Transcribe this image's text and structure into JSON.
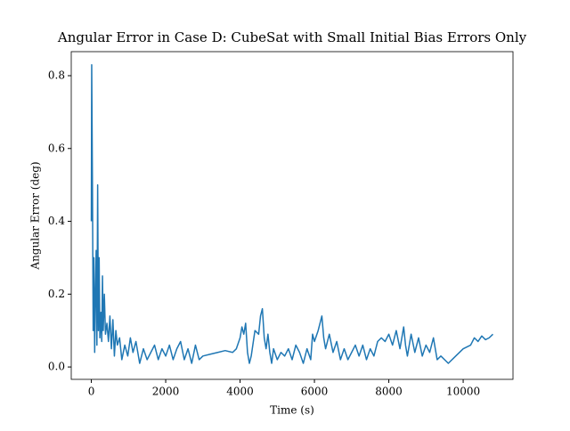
{
  "chart_data": {
    "type": "line",
    "title": "Angular Error in Case D: CubeSat with Small Initial Bias Errors Only",
    "x_label": "Time (s)",
    "y_label": "Angular Error (deg)",
    "x": [
      0,
      10,
      30,
      50,
      70,
      90,
      110,
      130,
      150,
      170,
      190,
      210,
      230,
      260,
      280,
      300,
      320,
      350,
      380,
      420,
      460,
      500,
      540,
      580,
      620,
      660,
      700,
      760,
      820,
      900,
      980,
      1050,
      1120,
      1200,
      1300,
      1400,
      1500,
      1600,
      1700,
      1800,
      1900,
      2000,
      2100,
      2200,
      2300,
      2400,
      2500,
      2600,
      2700,
      2800,
      2900,
      3000,
      3200,
      3400,
      3600,
      3800,
      3900,
      4000,
      4050,
      4100,
      4150,
      4200,
      4250,
      4300,
      4400,
      4500,
      4550,
      4600,
      4650,
      4700,
      4750,
      4800,
      4850,
      4900,
      5000,
      5100,
      5200,
      5300,
      5400,
      5500,
      5600,
      5700,
      5800,
      5900,
      5950,
      6000,
      6100,
      6200,
      6250,
      6300,
      6400,
      6500,
      6600,
      6700,
      6800,
      6900,
      7000,
      7100,
      7200,
      7300,
      7400,
      7500,
      7600,
      7700,
      7800,
      7900,
      8000,
      8100,
      8200,
      8300,
      8400,
      8450,
      8500,
      8600,
      8700,
      8800,
      8900,
      9000,
      9100,
      9200,
      9300,
      9400,
      9600,
      9800,
      10000,
      10200,
      10300,
      10400,
      10500,
      10600,
      10700,
      10800
    ],
    "series": [
      {
        "name": "Angular Error",
        "color": "#1f77b4",
        "values": [
          0.4,
          0.83,
          0.5,
          0.1,
          0.3,
          0.04,
          0.2,
          0.32,
          0.06,
          0.5,
          0.1,
          0.3,
          0.08,
          0.15,
          0.07,
          0.25,
          0.1,
          0.2,
          0.09,
          0.12,
          0.07,
          0.14,
          0.05,
          0.13,
          0.03,
          0.1,
          0.06,
          0.08,
          0.02,
          0.06,
          0.03,
          0.08,
          0.04,
          0.07,
          0.01,
          0.05,
          0.02,
          0.04,
          0.06,
          0.02,
          0.05,
          0.03,
          0.06,
          0.02,
          0.05,
          0.07,
          0.02,
          0.05,
          0.01,
          0.06,
          0.02,
          0.03,
          0.035,
          0.04,
          0.045,
          0.04,
          0.05,
          0.08,
          0.11,
          0.09,
          0.12,
          0.04,
          0.01,
          0.03,
          0.1,
          0.09,
          0.14,
          0.16,
          0.08,
          0.05,
          0.09,
          0.04,
          0.01,
          0.05,
          0.02,
          0.04,
          0.03,
          0.05,
          0.02,
          0.06,
          0.04,
          0.01,
          0.05,
          0.02,
          0.09,
          0.07,
          0.1,
          0.14,
          0.08,
          0.05,
          0.09,
          0.04,
          0.07,
          0.02,
          0.05,
          0.02,
          0.04,
          0.06,
          0.03,
          0.06,
          0.02,
          0.05,
          0.03,
          0.07,
          0.08,
          0.07,
          0.09,
          0.06,
          0.1,
          0.05,
          0.11,
          0.06,
          0.03,
          0.09,
          0.04,
          0.08,
          0.03,
          0.06,
          0.04,
          0.08,
          0.02,
          0.03,
          0.01,
          0.03,
          0.05,
          0.06,
          0.08,
          0.07,
          0.085,
          0.075,
          0.08,
          0.09
        ]
      }
    ],
    "xlim": [
      -540,
      11340
    ],
    "ylim": [
      -0.034,
      0.866
    ],
    "xticks": [
      0,
      2000,
      4000,
      6000,
      8000,
      10000
    ],
    "yticks": [
      {
        "value": 0,
        "label": "0.0"
      },
      0.2,
      0.4,
      0.6,
      0.8
    ]
  }
}
